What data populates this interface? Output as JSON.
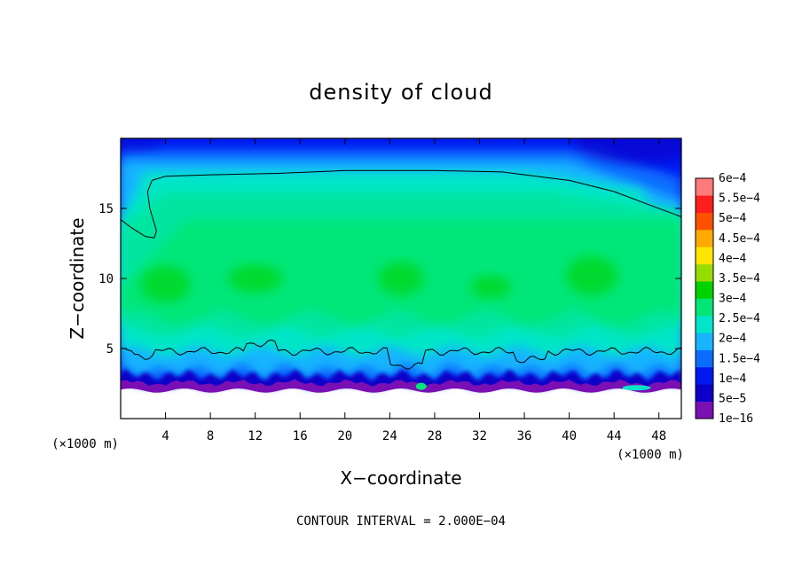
{
  "chart_data": {
    "type": "heatmap",
    "title": "density of cloud",
    "xlabel": "X−coordinate",
    "ylabel": "Z−coordinate",
    "x_unit": "(×1000 m)",
    "y_unit": "(×1000 m)",
    "xlim": [
      0,
      50
    ],
    "ylim": [
      0,
      20
    ],
    "x_ticks": [
      4,
      8,
      12,
      16,
      20,
      24,
      28,
      32,
      36,
      40,
      44,
      48
    ],
    "y_ticks": [
      5,
      10,
      15
    ],
    "contour_note": "CONTOUR INTERVAL = 2.000E−04",
    "colorbar": {
      "levels": [
        "1e−16",
        "5e−5",
        "1e−4",
        "1.5e−4",
        "2e−4",
        "2.5e−4",
        "3e−4",
        "3.5e−4",
        "4e−4",
        "4.5e−4",
        "5e−4",
        "5.5e−4",
        "6e−4"
      ],
      "colors": [
        "#7a0fb4",
        "#0c00c8",
        "#0018f0",
        "#0a6cff",
        "#18b4ff",
        "#00e6c8",
        "#00e678",
        "#00d200",
        "#96dc00",
        "#ffe600",
        "#ffaa00",
        "#ff5000",
        "#ff1e1e",
        "#ff7a7a"
      ]
    },
    "field": {
      "cloud_base_z": 2.2,
      "upper_contour_z": 17.5,
      "lower_contour_z": 5.0,
      "core_value": 0.0003,
      "edge_value": 0.0001
    }
  }
}
